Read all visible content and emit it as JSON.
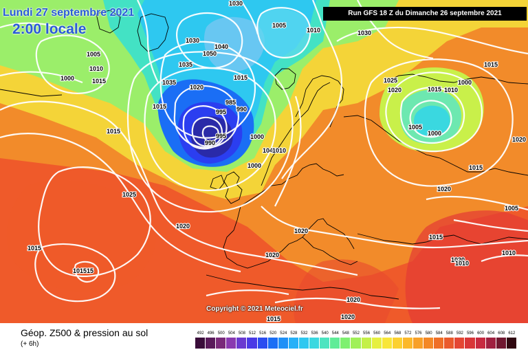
{
  "header": {
    "date_line": "Lundi 27 septembre 2021",
    "time_line": "2:00 locale",
    "run_label": "Run GFS 18 Z du Dimanche 26 septembre 2021"
  },
  "map": {
    "copyright": "Copyright © 2021 Meteociel.fr",
    "pressure_labels": [
      "1030",
      "1005",
      "1010",
      "1030",
      "1030",
      "1040",
      "1050",
      "1035",
      "1020",
      "1015",
      "1015",
      "1010",
      "1015",
      "1000",
      "1005",
      "1035",
      "1015",
      "995",
      "985",
      "990",
      "995",
      "990",
      "950",
      "1015",
      "1000",
      "1040",
      "1010",
      "1000",
      "1025",
      "1020",
      "1015",
      "1010",
      "1000",
      "1005",
      "1000",
      "1020",
      "1025",
      "1020",
      "1015",
      "1020",
      "1015",
      "1020",
      "1005",
      "1015",
      "1010",
      "1020",
      "1010",
      "1015",
      "1015",
      "1020",
      "1020",
      "1015"
    ]
  },
  "footer": {
    "product": "Géop. Z500 & pression au sol",
    "step": "(+ 6h)",
    "scale_labels": [
      "492",
      "496",
      "500",
      "504",
      "508",
      "512",
      "516",
      "520",
      "524",
      "528",
      "532",
      "536",
      "540",
      "544",
      "548",
      "552",
      "556",
      "560",
      "564",
      "568",
      "572",
      "576",
      "580",
      "584",
      "588",
      "592",
      "596",
      "600",
      "604",
      "608",
      "612"
    ],
    "scale_colors": [
      "#3a0d3a",
      "#5a1a5a",
      "#7a2a7a",
      "#8a3ab0",
      "#6a3ad0",
      "#4a3ae6",
      "#2b4df0",
      "#1a6ef5",
      "#1f90f7",
      "#26b0f8",
      "#2ec8f0",
      "#3ad8e0",
      "#4ce4c0",
      "#60ec98",
      "#7ef070",
      "#a0f058",
      "#c4f048",
      "#e6f040",
      "#f8e638",
      "#fcd030",
      "#fcb82a",
      "#f8a028",
      "#f48826",
      "#ef6f27",
      "#ea5a2c",
      "#e44633",
      "#d93638",
      "#c82a40",
      "#a02040",
      "#701830",
      "#300810"
    ]
  }
}
